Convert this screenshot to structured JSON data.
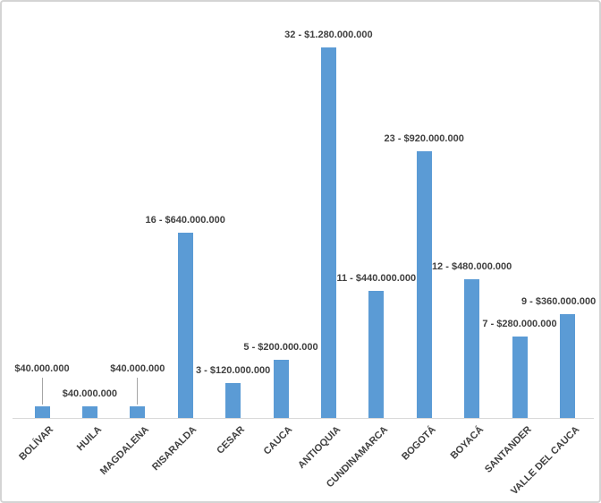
{
  "chart_data": {
    "type": "bar",
    "title": "",
    "xlabel": "",
    "ylabel": "",
    "grid": false,
    "legend": false,
    "value_axis_visible": false,
    "ylim": [
      0,
      1360000000
    ],
    "categories": [
      "BOLÍVAR",
      "HUILA",
      "MAGDALENA",
      "RISARALDA",
      "CESAR",
      "CAUCA",
      "ANTIOQUIA",
      "CUNDINAMARCA",
      "BOGOTÁ",
      "BOYACÁ",
      "SANTANDER",
      "VALLE DEL CAUCA"
    ],
    "series": [
      {
        "name": "amount",
        "values": [
          40000000,
          40000000,
          40000000,
          640000000,
          120000000,
          200000000,
          1280000000,
          440000000,
          920000000,
          480000000,
          280000000,
          360000000
        ]
      }
    ],
    "counts": [
      null,
      null,
      null,
      16,
      3,
      5,
      32,
      11,
      23,
      12,
      7,
      9
    ],
    "data_labels": [
      "$40.000.000",
      "$40.000.000",
      "$40.000.000",
      "16 - $640.000.000",
      "3 - $120.000.000",
      "5 - $200.000.000",
      "32 - $1.280.000.000",
      "11 - $440.000.000",
      "23 - $920.000.000",
      "12 - $480.000.000",
      "7 - $280.000.000",
      "9 - $360.000.000"
    ],
    "labels_with_leader_lines": [
      "BOLÍVAR",
      "MAGDALENA"
    ],
    "colors": {
      "bar": "#5B9BD5",
      "label_text": "#404040",
      "axis_line": "#D9D9D9",
      "leader_line": "#A6A6A6",
      "frame_border": "#D4D4D4",
      "background": "#FFFFFF"
    }
  }
}
